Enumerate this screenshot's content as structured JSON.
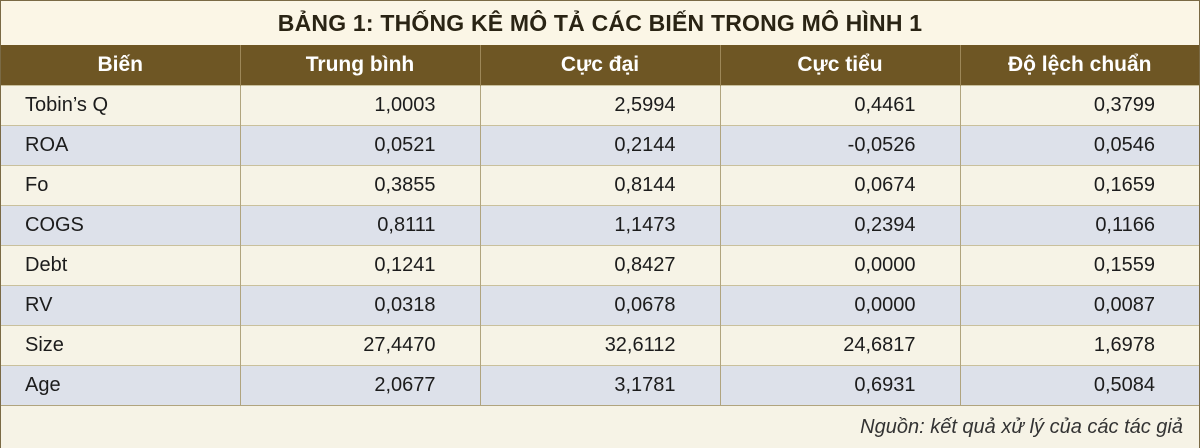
{
  "title": "BẢNG 1: THỐNG KÊ MÔ TẢ CÁC BIẾN TRONG MÔ HÌNH 1",
  "headers": [
    "Biến",
    "Trung bình",
    "Cực đại",
    "Cực tiểu",
    "Độ lệch chuẩn"
  ],
  "rows": [
    {
      "name": "Tobin’s Q",
      "mean": "1,0003",
      "max": "2,5994",
      "min": "0,4461",
      "sd": "0,3799"
    },
    {
      "name": "ROA",
      "mean": "0,0521",
      "max": "0,2144",
      "min": "-0,0526",
      "sd": "0,0546"
    },
    {
      "name": "Fo",
      "mean": "0,3855",
      "max": "0,8144",
      "min": "0,0674",
      "sd": "0,1659"
    },
    {
      "name": "COGS",
      "mean": "0,8111",
      "max": "1,1473",
      "min": "0,2394",
      "sd": "0,1166"
    },
    {
      "name": "Debt",
      "mean": "0,1241",
      "max": "0,8427",
      "min": "0,0000",
      "sd": "0,1559"
    },
    {
      "name": "RV",
      "mean": "0,0318",
      "max": "0,0678",
      "min": "0,0000",
      "sd": "0,0087"
    },
    {
      "name": "Size",
      "mean": "27,4470",
      "max": "32,6112",
      "min": "24,6817",
      "sd": "1,6978"
    },
    {
      "name": "Age",
      "mean": "2,0677",
      "max": "3,1781",
      "min": "0,6931",
      "sd": "0,5084"
    }
  ],
  "source": "Nguồn: kết quả xử lý của các tác giả",
  "colors": {
    "header_bg": "#6e5624",
    "row_light": "#f6f3e6",
    "row_blue": "#dde1ea"
  }
}
